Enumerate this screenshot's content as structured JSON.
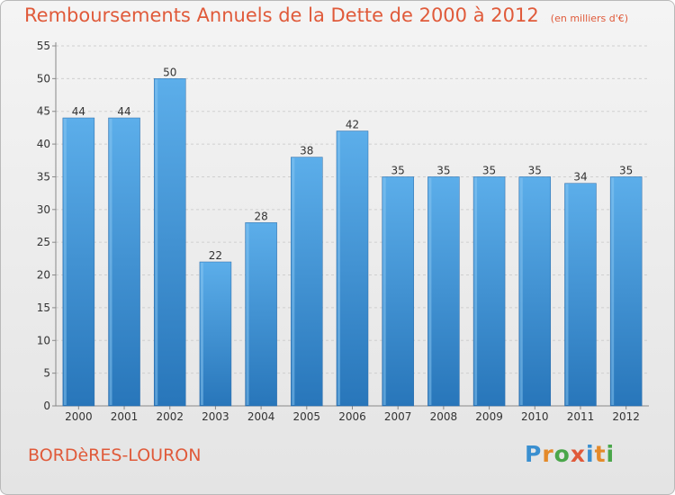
{
  "header": {
    "title": "Remboursements Annuels de la Dette de 2000 à 2012",
    "subtitle": "(en milliers d'€)"
  },
  "footer": {
    "commune": "BORDèRES-LOURON",
    "logo": "Proxiti"
  },
  "colors": {
    "title": "#e05a3a",
    "bar_light": "#5aaeea",
    "bar_dark": "#2a78bd",
    "grid": "#c8c8c8"
  },
  "chart_data": {
    "type": "bar",
    "title": "Remboursements Annuels de la Dette de 2000 à 2012",
    "subtitle": "(en milliers d'€)",
    "categories": [
      "2000",
      "2001",
      "2002",
      "2003",
      "2004",
      "2005",
      "2006",
      "2007",
      "2008",
      "2009",
      "2010",
      "2011",
      "2012"
    ],
    "values": [
      44,
      44,
      50,
      22,
      28,
      38,
      42,
      35,
      35,
      35,
      35,
      34,
      35
    ],
    "data_labels": [
      "44",
      "44",
      "50",
      "22",
      "28",
      "38",
      "42",
      "35",
      "35",
      "35",
      "35",
      "34",
      "35"
    ],
    "ylim": [
      0,
      55
    ],
    "yticks": [
      0,
      5,
      10,
      15,
      20,
      25,
      30,
      35,
      40,
      45,
      50,
      55
    ],
    "ytick_labels": [
      "0",
      "5",
      "10",
      "15",
      "20",
      "25",
      "30",
      "35",
      "40",
      "45",
      "50",
      "55"
    ],
    "grid": true,
    "xlabel": "",
    "ylabel": ""
  }
}
